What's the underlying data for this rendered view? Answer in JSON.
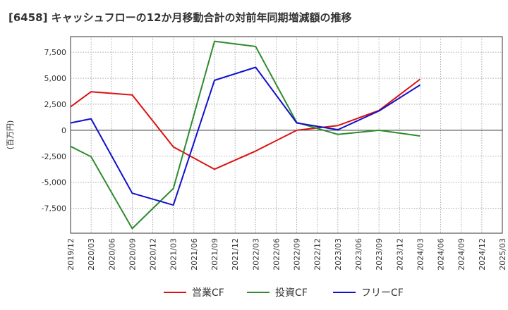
{
  "chart_data": {
    "type": "line",
    "title": "[6458]  キャッシュフローの12か月移動合計の対前年同期増減額の推移",
    "ylabel": "(百万円)",
    "xlabel": "",
    "ylim": [
      -9900,
      9000
    ],
    "yticks": [
      7500,
      5000,
      2500,
      0,
      -2500,
      -5000,
      -7500
    ],
    "ytick_labels": [
      "7,500",
      "5,000",
      "2,500",
      "0",
      "-2,500",
      "-5,000",
      "-7,500"
    ],
    "categories": [
      "2019/12",
      "2020/03",
      "2020/06",
      "2020/09",
      "2020/12",
      "2021/03",
      "2021/06",
      "2021/09",
      "2021/12",
      "2022/03",
      "2022/06",
      "2022/09",
      "2022/12",
      "2023/03",
      "2023/06",
      "2023/09",
      "2023/12",
      "2024/03",
      "2024/06",
      "2024/09",
      "2024/12",
      "2025/03"
    ],
    "grid": true,
    "legend_position": "bottom",
    "series": [
      {
        "name": "営業CF",
        "color": "#dd1111",
        "values": [
          2250,
          3700,
          null,
          3400,
          null,
          -1600,
          null,
          -3750,
          null,
          -2000,
          null,
          0,
          null,
          450,
          null,
          1900,
          null,
          4900,
          null,
          null,
          null,
          null
        ]
      },
      {
        "name": "投資CF",
        "color": "#2e8b2e",
        "values": [
          -1550,
          -2550,
          null,
          -9450,
          null,
          -5600,
          null,
          8550,
          null,
          8050,
          null,
          750,
          null,
          -400,
          null,
          0,
          null,
          -550,
          null,
          null,
          null,
          null
        ]
      },
      {
        "name": "フリーCF",
        "color": "#1111cc",
        "values": [
          700,
          1100,
          null,
          -6050,
          null,
          -7200,
          null,
          4800,
          null,
          6050,
          null,
          700,
          null,
          50,
          null,
          1850,
          null,
          4350,
          null,
          null,
          null,
          null
        ]
      }
    ]
  }
}
